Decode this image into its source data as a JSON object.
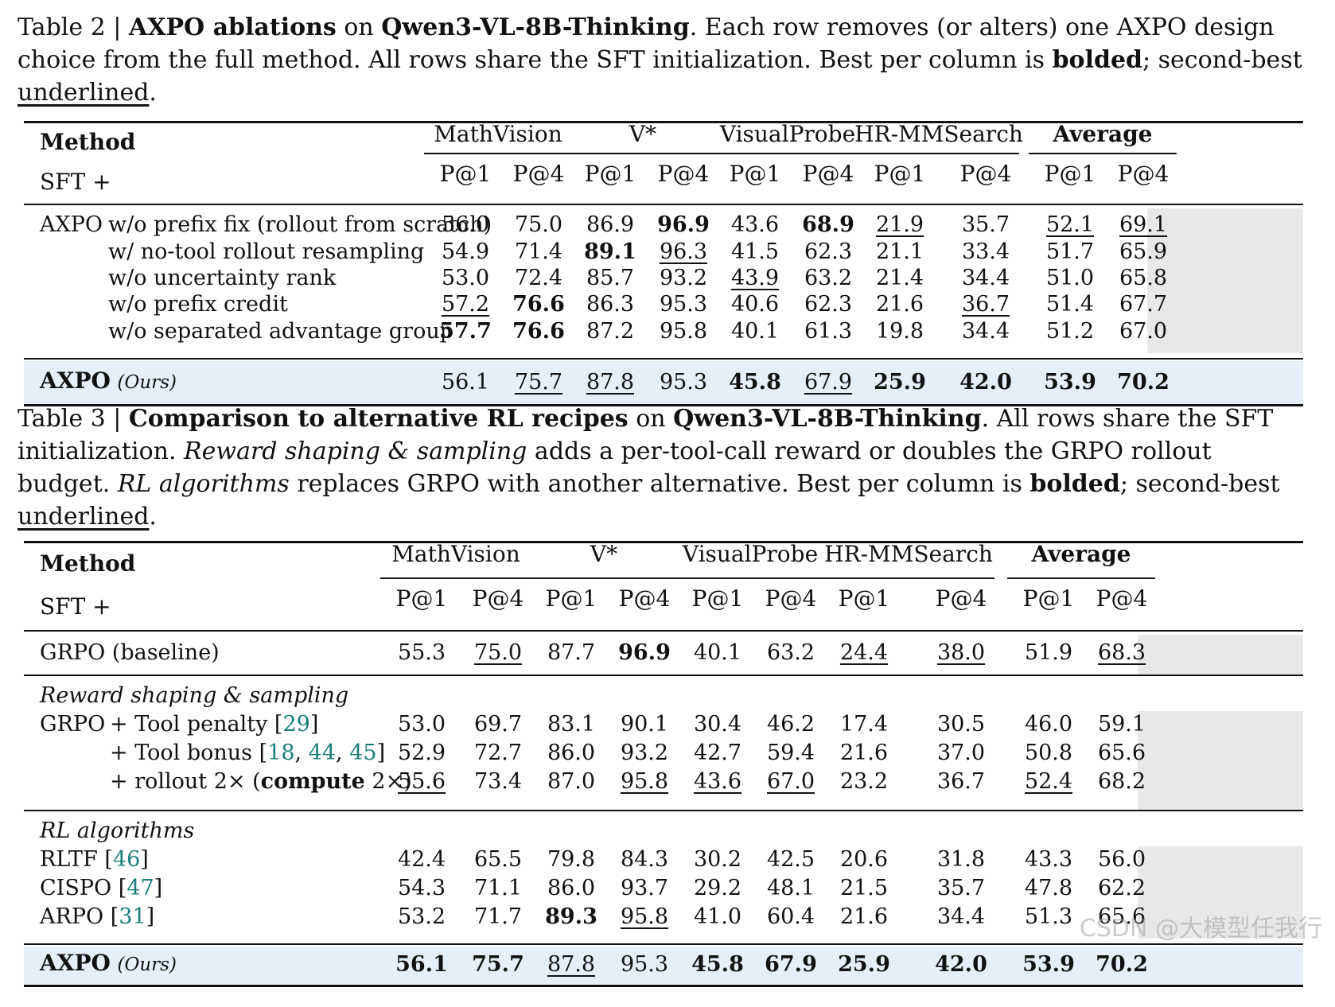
{
  "table2": {
    "caption_label": "Table 2 | ",
    "caption_title": "AXPO ablations",
    "caption_on": " on ",
    "caption_model": "Qwen3-VL-8B-Thinking",
    "caption_rest": ". Each row removes (or alters) one AXPO design choice from the full method. All rows share the SFT initialization. Best per column is ",
    "caption_bolded": "bolded",
    "caption_second": "; second-best ",
    "caption_underlined": "underlined",
    "caption_end": ".",
    "method_header": "Method",
    "sft_label": "SFT +",
    "groups": [
      "MathVision",
      "V*",
      "VisualProbe",
      "HR-MMSearch",
      "Average"
    ],
    "subcols": [
      "P@1",
      "P@4",
      "P@1",
      "P@4",
      "P@1",
      "P@4",
      "P@1",
      "P@4",
      "P@1",
      "P@4"
    ],
    "axpo_prefix": "AXPO",
    "rows": [
      {
        "label": "w/o prefix fix (rollout from scratch)",
        "values": [
          "56.0",
          "75.0",
          "86.9",
          "96.9",
          "43.6",
          "68.9",
          "21.9",
          "35.7",
          "52.1",
          "69.1"
        ],
        "bold": [
          3,
          5
        ],
        "ul": [
          6,
          8,
          9
        ]
      },
      {
        "label": "w/   no-tool rollout resampling",
        "values": [
          "54.9",
          "71.4",
          "89.1",
          "96.3",
          "41.5",
          "62.3",
          "21.1",
          "33.4",
          "51.7",
          "65.9"
        ],
        "bold": [
          2
        ],
        "ul": [
          3
        ]
      },
      {
        "label": "w/o uncertainty rank",
        "values": [
          "53.0",
          "72.4",
          "85.7",
          "93.2",
          "43.9",
          "63.2",
          "21.4",
          "34.4",
          "51.0",
          "65.8"
        ],
        "bold": [],
        "ul": [
          4
        ]
      },
      {
        "label": "w/o prefix credit",
        "values": [
          "57.2",
          "76.6",
          "86.3",
          "95.3",
          "40.6",
          "62.3",
          "21.6",
          "36.7",
          "51.4",
          "67.7"
        ],
        "bold": [
          1
        ],
        "ul": [
          0,
          7
        ]
      },
      {
        "label": "w/o separated advantage group",
        "values": [
          "57.7",
          "76.6",
          "87.2",
          "95.8",
          "40.1",
          "61.3",
          "19.8",
          "34.4",
          "51.2",
          "67.0"
        ],
        "bold": [
          0,
          1
        ],
        "ul": []
      }
    ],
    "ours": {
      "name": "AXPO",
      "tag": "(Ours)",
      "values": [
        "56.1",
        "75.7",
        "87.8",
        "95.3",
        "45.8",
        "67.9",
        "25.9",
        "42.0",
        "53.9",
        "70.2"
      ],
      "bold": [
        4,
        6,
        7,
        8,
        9
      ],
      "ul": [
        1,
        2,
        5
      ]
    }
  },
  "table3": {
    "caption_label": "Table 3 | ",
    "caption_title": "Comparison to alternative RL recipes",
    "caption_on": " on ",
    "caption_model": "Qwen3-VL-8B-Thinking",
    "caption_a": ". All rows share the SFT initialization. ",
    "caption_rs": "Reward shaping & sampling",
    "caption_b": " adds a per-tool-call reward or doubles the GRPO rollout budget. ",
    "caption_rl": "RL algorithms",
    "caption_c": " replaces GRPO with another alternative. Best per column is ",
    "caption_bolded": "bolded",
    "caption_second": "; second-best ",
    "caption_underlined": "underlined",
    "caption_end": ".",
    "method_header": "Method",
    "sft_label": "SFT +",
    "groups": [
      "MathVision",
      "V*",
      "VisualProbe",
      "HR-MMSearch",
      "Average"
    ],
    "subcols": [
      "P@1",
      "P@4",
      "P@1",
      "P@4",
      "P@1",
      "P@4",
      "P@1",
      "P@4",
      "P@1",
      "P@4"
    ],
    "baseline": {
      "label": "GRPO (baseline)",
      "values": [
        "55.3",
        "75.0",
        "87.7",
        "96.9",
        "40.1",
        "63.2",
        "24.4",
        "38.0",
        "51.9",
        "68.3"
      ],
      "bold": [
        3
      ],
      "ul": [
        1,
        6,
        7,
        9
      ]
    },
    "section_rs": "Reward shaping & sampling",
    "rs_rows": [
      {
        "prefix": "GRPO",
        "label": "+ Tool penalty ",
        "cite_open": "[",
        "cites": [
          "29"
        ],
        "cite_close": "]",
        "values": [
          "53.0",
          "69.7",
          "83.1",
          "90.1",
          "30.4",
          "46.2",
          "17.4",
          "30.5",
          "46.0",
          "59.1"
        ],
        "bold": [],
        "ul": []
      },
      {
        "prefix": "",
        "label": "+ Tool bonus ",
        "cite_open": "[",
        "cites": [
          "18",
          "44",
          "45"
        ],
        "cite_close": "]",
        "values": [
          "52.9",
          "72.7",
          "86.0",
          "93.2",
          "42.7",
          "59.4",
          "21.6",
          "37.0",
          "50.8",
          "65.6"
        ],
        "bold": [],
        "ul": []
      },
      {
        "prefix": "",
        "label": "+ rollout 2× (",
        "bold_part": "compute",
        "label_end": " 2×)",
        "values": [
          "55.6",
          "73.4",
          "87.0",
          "95.8",
          "43.6",
          "67.0",
          "23.2",
          "36.7",
          "52.4",
          "68.2"
        ],
        "bold": [],
        "ul": [
          0,
          3,
          4,
          5,
          8
        ]
      }
    ],
    "section_rl": "RL algorithms",
    "rl_rows": [
      {
        "label": "RLTF ",
        "cite": "46",
        "values": [
          "42.4",
          "65.5",
          "79.8",
          "84.3",
          "30.2",
          "42.5",
          "20.6",
          "31.8",
          "43.3",
          "56.0"
        ],
        "bold": [],
        "ul": []
      },
      {
        "label": "CISPO ",
        "cite": "47",
        "values": [
          "54.3",
          "71.1",
          "86.0",
          "93.7",
          "29.2",
          "48.1",
          "21.5",
          "35.7",
          "47.8",
          "62.2"
        ],
        "bold": [],
        "ul": []
      },
      {
        "label": "ARPO ",
        "cite": "31",
        "values": [
          "53.2",
          "71.7",
          "89.3",
          "95.8",
          "41.0",
          "60.4",
          "21.6",
          "34.4",
          "51.3",
          "65.6"
        ],
        "bold": [
          2
        ],
        "ul": [
          3
        ]
      }
    ],
    "ours": {
      "name": "AXPO",
      "tag": "(Ours)",
      "values": [
        "56.1",
        "75.7",
        "87.8",
        "95.3",
        "45.8",
        "67.9",
        "25.9",
        "42.0",
        "53.9",
        "70.2"
      ],
      "bold": [
        0,
        1,
        4,
        5,
        6,
        7,
        8,
        9
      ],
      "ul": [
        2
      ]
    }
  },
  "watermark": "CSDN @大模型任我行",
  "colors": {
    "highlight_row": "#e6eef9",
    "average_shade": "#e8e8e8",
    "citation": "#1a7f7a"
  }
}
